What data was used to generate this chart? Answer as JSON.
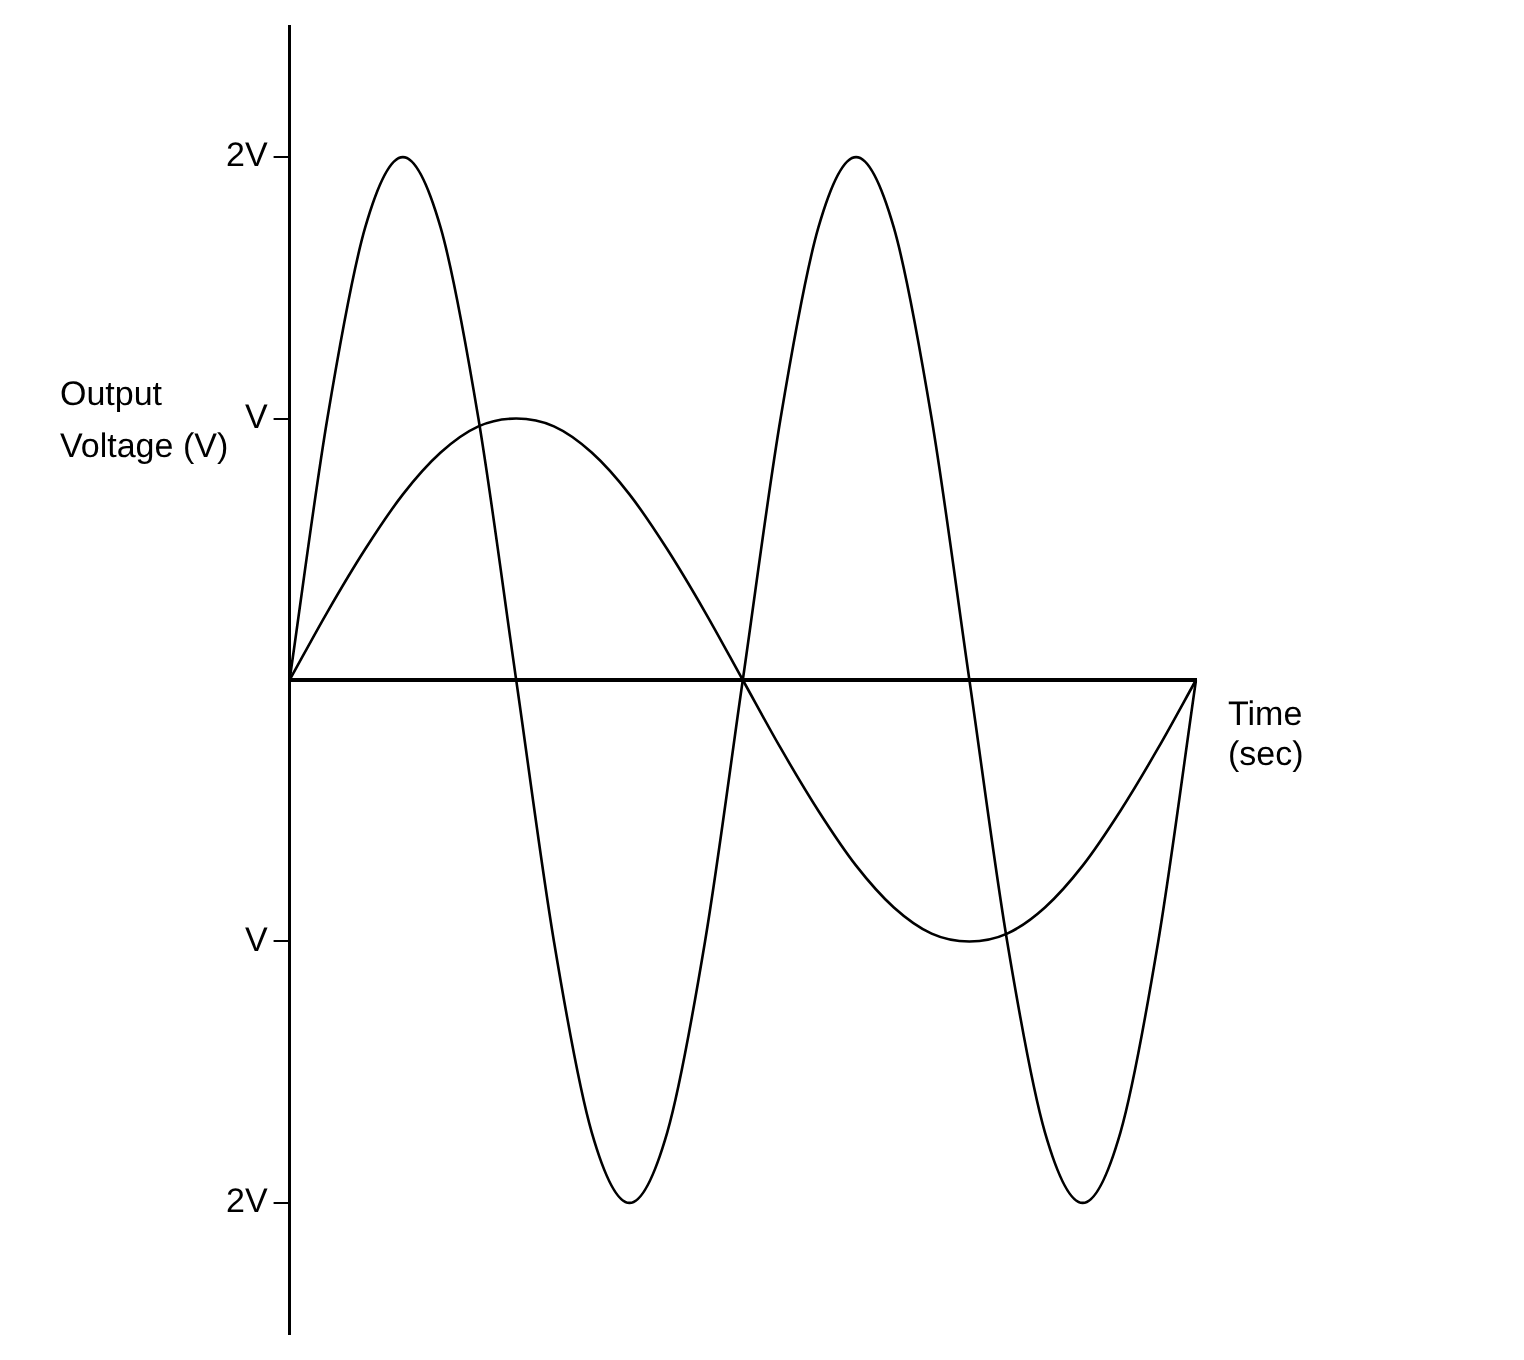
{
  "chart_data": {
    "type": "line",
    "xlabel": "Time (sec)",
    "ylabel": "Output Voltage (V)",
    "categories": [
      null,
      null,
      null,
      null,
      null,
      null,
      null,
      null,
      null,
      null,
      null,
      null,
      null,
      null,
      null,
      null,
      null,
      null,
      null,
      null,
      null,
      null,
      null,
      null,
      null
    ],
    "series": [
      {
        "color": "#000000",
        "values": [
          0,
          0.26,
          0.5,
          0.71,
          0.87,
          0.97,
          1,
          0.97,
          0.87,
          0.71,
          0.5,
          0.26,
          0,
          -0.26,
          -0.5,
          -0.71,
          -0.87,
          -0.97,
          -1,
          -0.97,
          -0.87,
          -0.71,
          -0.5,
          -0.26,
          0
        ]
      },
      {
        "color": "#000000",
        "values": [
          0,
          1,
          1.73,
          2,
          1.73,
          1,
          0,
          -1,
          -1.73,
          -2,
          -1.73,
          -1,
          0,
          1,
          1.73,
          2,
          1.73,
          1,
          0,
          -1,
          -1.73,
          -2,
          -1.73,
          -1,
          0
        ]
      }
    ],
    "ylim": [
      -2.5,
      2.5
    ],
    "yticks": [
      {
        "value": 2,
        "label": "2V"
      },
      {
        "value": 1,
        "label": "V"
      },
      {
        "value": -1,
        "label": "V"
      },
      {
        "value": -2,
        "label": "2V"
      }
    ],
    "grid": false,
    "legend": false,
    "marker": "none",
    "line_style": "solid",
    "tick_labels": "y"
  }
}
